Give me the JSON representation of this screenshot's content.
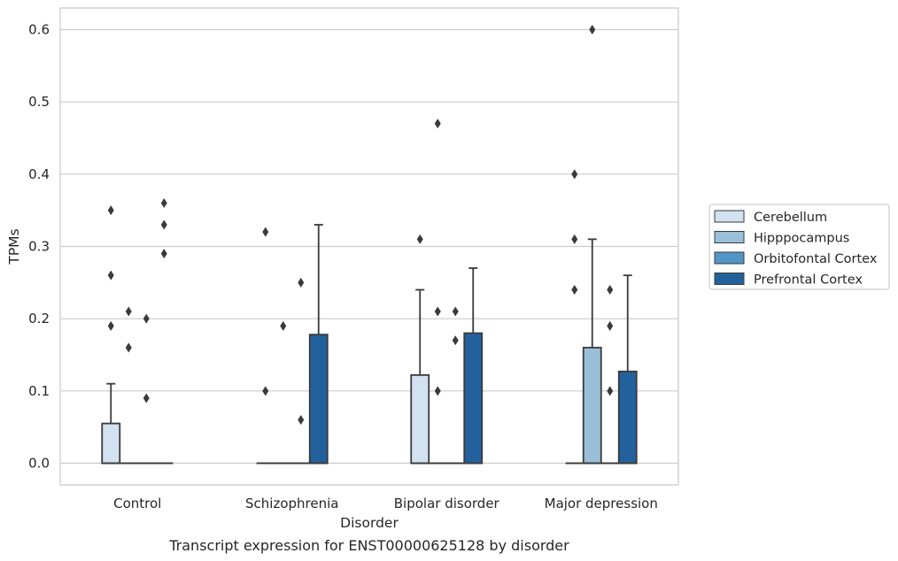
{
  "caption": "Transcript expression for ENST00000625128 by disorder",
  "chart_data": {
    "type": "box",
    "xlabel": "Disorder",
    "ylabel": "TPMs",
    "ylim": [
      -0.03,
      0.63
    ],
    "yticks": [
      0.0,
      0.1,
      0.2,
      0.3,
      0.4,
      0.5,
      0.6
    ],
    "ytick_labels": [
      "0.0",
      "0.1",
      "0.2",
      "0.3",
      "0.4",
      "0.5",
      "0.6"
    ],
    "grid": "horizontal",
    "legend_position": "right",
    "categories": [
      "Control",
      "Schizophrenia",
      "Bipolar disorder",
      "Major depression"
    ],
    "series": [
      {
        "name": "Cerebellum",
        "color": "#d2e2f1",
        "boxes": [
          {
            "q1": 0.0,
            "median": 0.0,
            "q3": 0.055,
            "whisker_low": 0.0,
            "whisker_high": 0.11,
            "outliers": [
              0.19,
              0.26,
              0.35
            ]
          },
          {
            "q1": 0.0,
            "median": 0.0,
            "q3": 0.0,
            "whisker_low": 0.0,
            "whisker_high": 0.0,
            "outliers": [
              0.1,
              0.32
            ]
          },
          {
            "q1": 0.0,
            "median": 0.0,
            "q3": 0.122,
            "whisker_low": 0.0,
            "whisker_high": 0.24,
            "outliers": [
              0.31
            ]
          },
          {
            "q1": 0.0,
            "median": 0.0,
            "q3": 0.0,
            "whisker_low": 0.0,
            "whisker_high": 0.0,
            "outliers": [
              0.24,
              0.31,
              0.4
            ]
          }
        ]
      },
      {
        "name": "Hipppocampus",
        "color": "#9ac0d9",
        "boxes": [
          {
            "q1": 0.0,
            "median": 0.0,
            "q3": 0.0,
            "whisker_low": 0.0,
            "whisker_high": 0.0,
            "outliers": [
              0.16,
              0.21
            ]
          },
          {
            "q1": 0.0,
            "median": 0.0,
            "q3": 0.0,
            "whisker_low": 0.0,
            "whisker_high": 0.0,
            "outliers": [
              0.19
            ]
          },
          {
            "q1": 0.0,
            "median": 0.0,
            "q3": 0.0,
            "whisker_low": 0.0,
            "whisker_high": 0.0,
            "outliers": [
              0.1,
              0.21,
              0.47
            ]
          },
          {
            "q1": 0.0,
            "median": 0.0,
            "q3": 0.16,
            "whisker_low": 0.0,
            "whisker_high": 0.31,
            "outliers": [
              0.6
            ]
          }
        ]
      },
      {
        "name": "Orbitofontal Cortex",
        "color": "#5196c6",
        "boxes": [
          {
            "q1": 0.0,
            "median": 0.0,
            "q3": 0.0,
            "whisker_low": 0.0,
            "whisker_high": 0.0,
            "outliers": [
              0.09,
              0.2
            ]
          },
          {
            "q1": 0.0,
            "median": 0.0,
            "q3": 0.0,
            "whisker_low": 0.0,
            "whisker_high": 0.0,
            "outliers": [
              0.06,
              0.25
            ]
          },
          {
            "q1": 0.0,
            "median": 0.0,
            "q3": 0.0,
            "whisker_low": 0.0,
            "whisker_high": 0.0,
            "outliers": [
              0.17,
              0.21
            ]
          },
          {
            "q1": 0.0,
            "median": 0.0,
            "q3": 0.0,
            "whisker_low": 0.0,
            "whisker_high": 0.0,
            "outliers": [
              0.1,
              0.19,
              0.24
            ]
          }
        ]
      },
      {
        "name": "Prefrontal Cortex",
        "color": "#23619c",
        "boxes": [
          {
            "q1": 0.0,
            "median": 0.0,
            "q3": 0.0,
            "whisker_low": 0.0,
            "whisker_high": 0.0,
            "outliers": [
              0.29,
              0.33,
              0.36
            ]
          },
          {
            "q1": 0.0,
            "median": 0.0,
            "q3": 0.178,
            "whisker_low": 0.0,
            "whisker_high": 0.33,
            "outliers": []
          },
          {
            "q1": 0.0,
            "median": 0.0,
            "q3": 0.18,
            "whisker_low": 0.0,
            "whisker_high": 0.27,
            "outliers": []
          },
          {
            "q1": 0.0,
            "median": 0.0,
            "q3": 0.127,
            "whisker_low": 0.0,
            "whisker_high": 0.26,
            "outliers": []
          }
        ]
      }
    ]
  }
}
